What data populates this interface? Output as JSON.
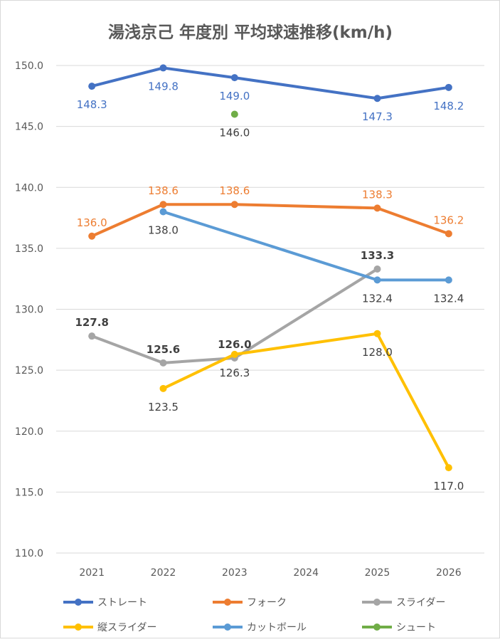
{
  "chart_data": {
    "type": "line",
    "title": "湯浅京己 年度別 平均球速推移(km/h)",
    "xlabel": "",
    "ylabel": "",
    "categories": [
      "2021",
      "2022",
      "2023",
      "2024",
      "2025",
      "2026"
    ],
    "ylim": [
      110,
      150
    ],
    "yticks": [
      "110.0",
      "115.0",
      "120.0",
      "125.0",
      "130.0",
      "135.0",
      "140.0",
      "145.0",
      "150.0"
    ],
    "grid": true,
    "legend_position": "bottom",
    "series": [
      {
        "name": "ストレート",
        "color": "#4472C4",
        "values": [
          148.3,
          149.8,
          149.0,
          null,
          147.3,
          148.2
        ],
        "labels": [
          "148.3",
          "149.8",
          "149.0",
          null,
          "147.3",
          "148.2"
        ],
        "label_pos": "below",
        "label_color": "#4472C4"
      },
      {
        "name": "フォーク",
        "color": "#ED7D31",
        "values": [
          136.0,
          138.6,
          138.6,
          null,
          138.3,
          136.2
        ],
        "labels": [
          "136.0",
          "138.6",
          "138.6",
          null,
          "138.3",
          "136.2"
        ],
        "label_pos": "above",
        "label_color": "#ED7D31"
      },
      {
        "name": "スライダー",
        "color": "#A5A5A5",
        "values": [
          127.8,
          125.6,
          126.0,
          null,
          133.3,
          null
        ],
        "labels": [
          "127.8",
          "125.6",
          "126.0",
          null,
          "133.3",
          null
        ],
        "label_pos": "above",
        "label_color": "#404040"
      },
      {
        "name": "縦スライダー",
        "color": "#FFC000",
        "values": [
          null,
          123.5,
          126.3,
          null,
          128.0,
          117.0
        ],
        "labels": [
          null,
          "123.5",
          "126.3",
          null,
          "128.0",
          "117.0"
        ],
        "label_pos": "below",
        "label_color": "#404040"
      },
      {
        "name": "カットボール",
        "color": "#5B9BD5",
        "values": [
          null,
          138.0,
          null,
          null,
          132.4,
          132.4
        ],
        "labels": [
          null,
          "138.0",
          null,
          null,
          "132.4",
          "132.4"
        ],
        "label_pos": "below",
        "label_color": "#404040"
      },
      {
        "name": "シュート",
        "color": "#70AD47",
        "values": [
          null,
          null,
          146.0,
          null,
          null,
          null
        ],
        "labels": [
          null,
          null,
          "146.0",
          null,
          null,
          null
        ],
        "label_pos": "below",
        "label_color": "#404040"
      }
    ]
  }
}
